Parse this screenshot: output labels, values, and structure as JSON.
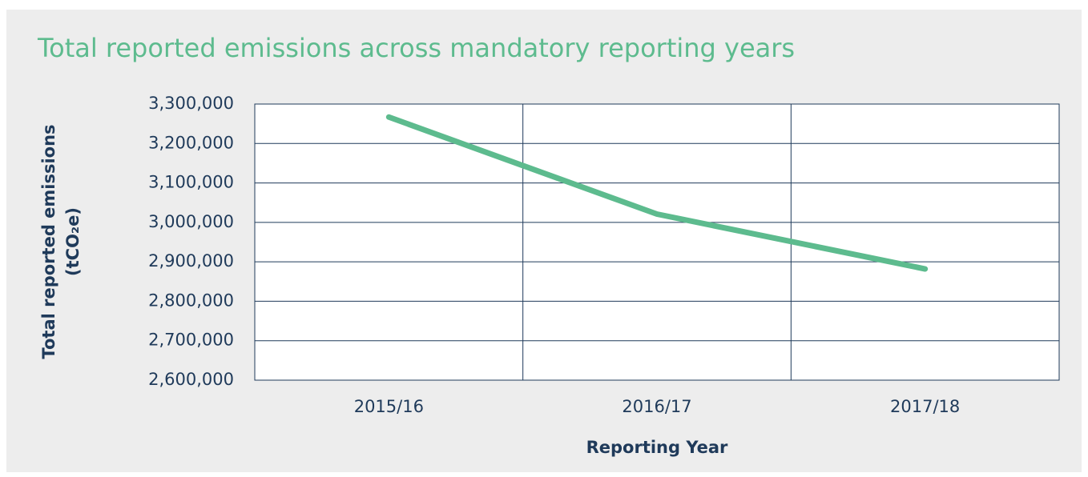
{
  "chart_data": {
    "type": "line",
    "title": "Total reported emissions across mandatory reporting years",
    "ylabel": [
      "Total reported emissions",
      "(tCO₂e)"
    ],
    "xlabel": "Reporting Year",
    "categories": [
      "2015/16",
      "2016/17",
      "2017/18"
    ],
    "series": [
      {
        "name": "Total reported emissions",
        "color": "#5dbb8e",
        "values": [
          3267000,
          3021000,
          2882000
        ]
      }
    ],
    "ylim": [
      2600000,
      3300000
    ],
    "yticks": [
      {
        "value": 2600000,
        "label": "2,600,000"
      },
      {
        "value": 2700000,
        "label": "2,700,000"
      },
      {
        "value": 2800000,
        "label": "2,800,000"
      },
      {
        "value": 2900000,
        "label": "2,900,000"
      },
      {
        "value": 3000000,
        "label": "3,000,000"
      },
      {
        "value": 3100000,
        "label": "3,100,000"
      },
      {
        "value": 3200000,
        "label": "3,200,000"
      },
      {
        "value": 3300000,
        "label": "3,300,000"
      }
    ],
    "grid": true
  }
}
